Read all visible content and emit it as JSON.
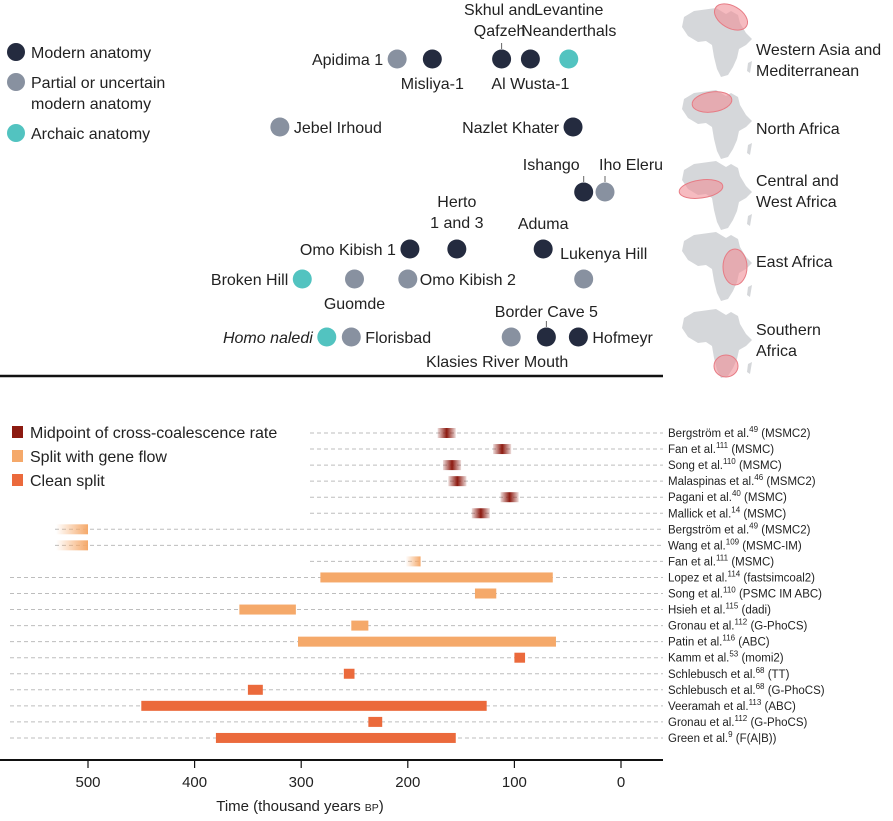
{
  "chart_data": [
    {
      "type": "scatter",
      "legend": [
        {
          "key": "modern",
          "label": "Modern anatomy",
          "color": "#242b3f"
        },
        {
          "key": "partial",
          "label": "Partial or uncertain",
          "label2": "modern anatomy",
          "color": "#8891a0"
        },
        {
          "key": "archaic",
          "label": "Archaic anatomy",
          "color": "#52c3c0"
        }
      ],
      "regions": [
        {
          "label": "Western Asia and",
          "label2": "Mediterranean",
          "highlight": "western_asia"
        },
        {
          "label": "North Africa",
          "label2": "",
          "highlight": "north"
        },
        {
          "label": "Central and",
          "label2": "West Africa",
          "highlight": "west"
        },
        {
          "label": "East Africa",
          "label2": "",
          "highlight": "east"
        },
        {
          "label": "Southern",
          "label2": "Africa",
          "highlight": "south"
        }
      ],
      "sites": [
        {
          "lines": [
            "Apidima 1"
          ],
          "age": 210,
          "type": "partial",
          "region": 0
        },
        {
          "lines": [
            "Misliya-1"
          ],
          "age": 177,
          "type": "modern",
          "region": 0
        },
        {
          "lines": [
            "Skhul and",
            "Qafzeh"
          ],
          "age": 112,
          "type": "modern",
          "region": 0
        },
        {
          "lines": [
            "Al Wusta-1"
          ],
          "age": 85,
          "type": "modern",
          "region": 0
        },
        {
          "lines": [
            "Levantine",
            "Neanderthals"
          ],
          "age": 49,
          "type": "archaic",
          "region": 0
        },
        {
          "lines": [
            "Jebel Irhoud"
          ],
          "age": 320,
          "type": "partial",
          "region": 1
        },
        {
          "lines": [
            "Nazlet Khater"
          ],
          "age": 45,
          "type": "modern",
          "region": 1
        },
        {
          "lines": [
            "Ishango"
          ],
          "age": 35,
          "type": "modern",
          "region": 2
        },
        {
          "lines": [
            "Iho Eleru"
          ],
          "age": 15,
          "type": "partial",
          "region": 2
        },
        {
          "lines": [
            "Omo Kibish 1"
          ],
          "age": 198,
          "type": "modern",
          "region": 3
        },
        {
          "lines": [
            "Herto",
            "1 and 3"
          ],
          "age": 154,
          "type": "modern",
          "region": 3
        },
        {
          "lines": [
            "Aduma"
          ],
          "age": 73,
          "type": "modern",
          "region": 3
        },
        {
          "lines": [
            "Broken Hill"
          ],
          "age": 299,
          "type": "archaic",
          "region": 3
        },
        {
          "lines": [
            "Guomde"
          ],
          "age": 250,
          "type": "partial",
          "region": 3
        },
        {
          "lines": [
            "Omo Kibish 2"
          ],
          "age": 200,
          "type": "partial",
          "region": 3
        },
        {
          "lines": [
            "Lukenya Hill"
          ],
          "age": 35,
          "type": "partial",
          "region": 3
        },
        {
          "lines": [
            "Homo naledi"
          ],
          "age": 276,
          "type": "archaic",
          "region": 4,
          "italic": true
        },
        {
          "lines": [
            "Florisbad"
          ],
          "age": 253,
          "type": "partial",
          "region": 4
        },
        {
          "lines": [
            "Klasies River Mouth"
          ],
          "age": 103,
          "type": "partial",
          "region": 4
        },
        {
          "lines": [
            "Border Cave 5"
          ],
          "age": 70,
          "type": "modern",
          "region": 4
        },
        {
          "lines": [
            "Hofmeyr"
          ],
          "age": 40,
          "type": "modern",
          "region": 4
        }
      ]
    },
    {
      "type": "bar",
      "orientation": "horizontal",
      "xlabel": "Time (thousand years",
      "xlabel_sc": "BP",
      "xlabel_close": ")",
      "x_ticks": [
        500,
        400,
        300,
        200,
        100,
        0
      ],
      "xlim": [
        575,
        -37
      ],
      "legend": [
        {
          "label": "Midpoint of cross-coalescence rate",
          "color": "#8c1a10",
          "style": "midpoint"
        },
        {
          "label": "Split with gene flow",
          "color": "#f5a96a",
          "style": "gene_flow"
        },
        {
          "label": "Clean split",
          "color": "#eb6a3c",
          "style": "clean"
        }
      ],
      "studies": [
        {
          "ref": "Bergström et al.",
          "sup": "49",
          "method": " (MSMC2)",
          "style": "midpoint",
          "start": 172,
          "end": 155
        },
        {
          "ref": "Fan et al.",
          "sup": "111",
          "method": " (MSMC)",
          "style": "midpoint",
          "start": 120,
          "end": 103
        },
        {
          "ref": "Song et al.",
          "sup": "110",
          "method": " (MSMC)",
          "style": "midpoint",
          "start": 167,
          "end": 150
        },
        {
          "ref": "Malaspinas et al.",
          "sup": "46",
          "method": " (MSMC2)",
          "style": "midpoint",
          "start": 162,
          "end": 145
        },
        {
          "ref": "Pagani et al.",
          "sup": "40",
          "method": " (MSMC)",
          "style": "midpoint",
          "start": 113,
          "end": 96
        },
        {
          "ref": "Mallick et al.",
          "sup": "14",
          "method": " (MSMC)",
          "style": "midpoint",
          "start": 140,
          "end": 123
        },
        {
          "ref": "Bergström et al.",
          "sup": "49",
          "method": " (MSMC2)",
          "style": "gene_flow_fade",
          "start": 530,
          "end": 500
        },
        {
          "ref": "Wang et al.",
          "sup": "109",
          "method": " (MSMC-IM)",
          "style": "gene_flow_fade",
          "start": 530,
          "end": 500
        },
        {
          "ref": "Fan et al.",
          "sup": "111",
          "method": " (MSMC)",
          "style": "gene_flow_fade",
          "start": 202,
          "end": 188
        },
        {
          "ref": "Lopez et al.",
          "sup": "114",
          "method": " (fastsimcoal2)",
          "style": "gene_flow",
          "start": 282,
          "end": 64
        },
        {
          "ref": "Song et al.",
          "sup": "110",
          "method": " (PSMC IM ABC)",
          "style": "gene_flow",
          "start": 137,
          "end": 117
        },
        {
          "ref": "Hsieh et al.",
          "sup": "115",
          "method": " (dadi)",
          "style": "gene_flow",
          "start": 358,
          "end": 305
        },
        {
          "ref": "Gronau et al.",
          "sup": "112",
          "method": " (G-PhoCS)",
          "style": "gene_flow",
          "start": 253,
          "end": 237
        },
        {
          "ref": "Patin et al.",
          "sup": "116",
          "method": " (ABC)",
          "style": "gene_flow",
          "start": 303,
          "end": 61
        },
        {
          "ref": "Kamm et al.",
          "sup": "53",
          "method": " (momi2)",
          "style": "clean",
          "start": 100,
          "end": 90
        },
        {
          "ref": "Schlebusch et al.",
          "sup": "68",
          "method": " (TT)",
          "style": "clean",
          "start": 260,
          "end": 250
        },
        {
          "ref": "Schlebusch et al.",
          "sup": "68",
          "method": " (G-PhoCS)",
          "style": "clean",
          "start": 350,
          "end": 336
        },
        {
          "ref": "Veeramah et al.",
          "sup": "113",
          "method": " (ABC)",
          "style": "clean",
          "start": 450,
          "end": 126
        },
        {
          "ref": "Gronau et al.",
          "sup": "112",
          "method": " (G-PhoCS)",
          "style": "clean",
          "start": 237,
          "end": 224
        },
        {
          "ref": "Green et al.",
          "sup": "9",
          "method": " (F(A|B))",
          "style": "clean",
          "start": 380,
          "end": 155
        }
      ]
    }
  ]
}
